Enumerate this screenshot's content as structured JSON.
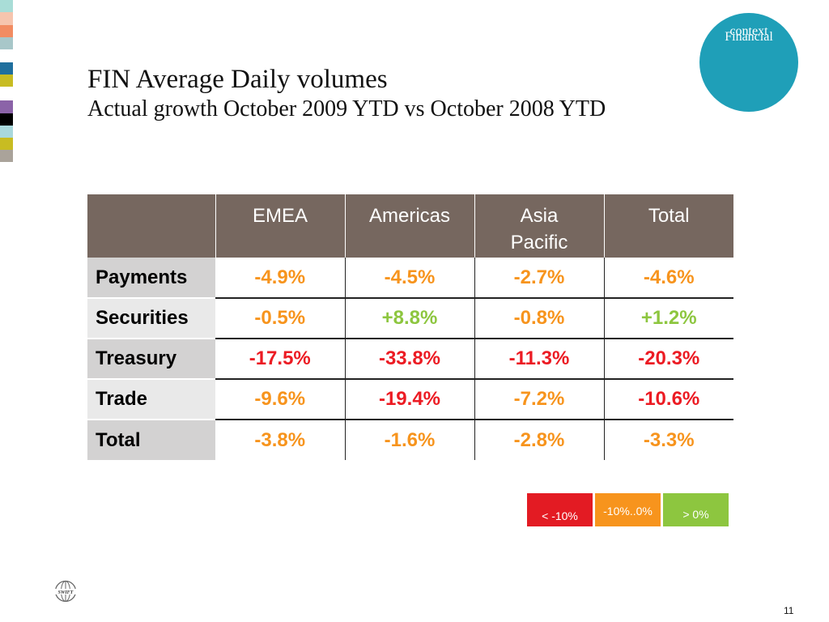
{
  "colors": {
    "header_bg": "#76675f",
    "row_label_dark": "#d3d2d2",
    "row_label_light": "#e9e9e9",
    "red": "#ec1b23",
    "orange": "#f7941d",
    "green": "#8dc63f",
    "badge": "#1f9fb8",
    "legend_red": "#e31b23",
    "legend_orange": "#f7941d",
    "legend_green": "#8dc63f"
  },
  "strip_colors": [
    "#a9ddd7",
    "#f6c5ae",
    "#f28c62",
    "#a8c7c9",
    "#ffffff",
    "#1f6f9e",
    "#c8bc22",
    "#ffffff",
    "#8b63a8",
    "#000000",
    "#a9d8dc",
    "#c8bc22",
    "#aaa39a"
  ],
  "badge": {
    "line1": "Financial",
    "line2": "context"
  },
  "title": "FIN Average Daily volumes",
  "subtitle": "Actual growth October 2009 YTD vs October 2008 YTD",
  "table": {
    "columns": [
      "",
      "EMEA",
      "Americas",
      "Asia Pacific",
      "Total"
    ],
    "rows": [
      {
        "label": "Payments",
        "values": [
          "-4.9%",
          "-4.5%",
          "-2.7%",
          "-4.6%"
        ],
        "status": [
          "orange",
          "orange",
          "orange",
          "orange"
        ]
      },
      {
        "label": "Securities",
        "values": [
          "-0.5%",
          "+8.8%",
          "-0.8%",
          "+1.2%"
        ],
        "status": [
          "orange",
          "green",
          "orange",
          "green"
        ]
      },
      {
        "label": "Treasury",
        "values": [
          "-17.5%",
          "-33.8%",
          "-11.3%",
          "-20.3%"
        ],
        "status": [
          "red",
          "red",
          "red",
          "red"
        ]
      },
      {
        "label": "Trade",
        "values": [
          "-9.6%",
          "-19.4%",
          "-7.2%",
          "-10.6%"
        ],
        "status": [
          "orange",
          "red",
          "orange",
          "red"
        ]
      },
      {
        "label": "Total",
        "values": [
          "-3.8%",
          "-1.6%",
          "-2.8%",
          "-3.3%"
        ],
        "status": [
          "orange",
          "orange",
          "orange",
          "orange"
        ]
      }
    ]
  },
  "legend": [
    {
      "label": "< -10%",
      "color": "red"
    },
    {
      "label": "-10%..0%",
      "color": "orange"
    },
    {
      "label": "> 0%",
      "color": "green"
    }
  ],
  "logo_text": "SWIFT",
  "page_number": "11"
}
